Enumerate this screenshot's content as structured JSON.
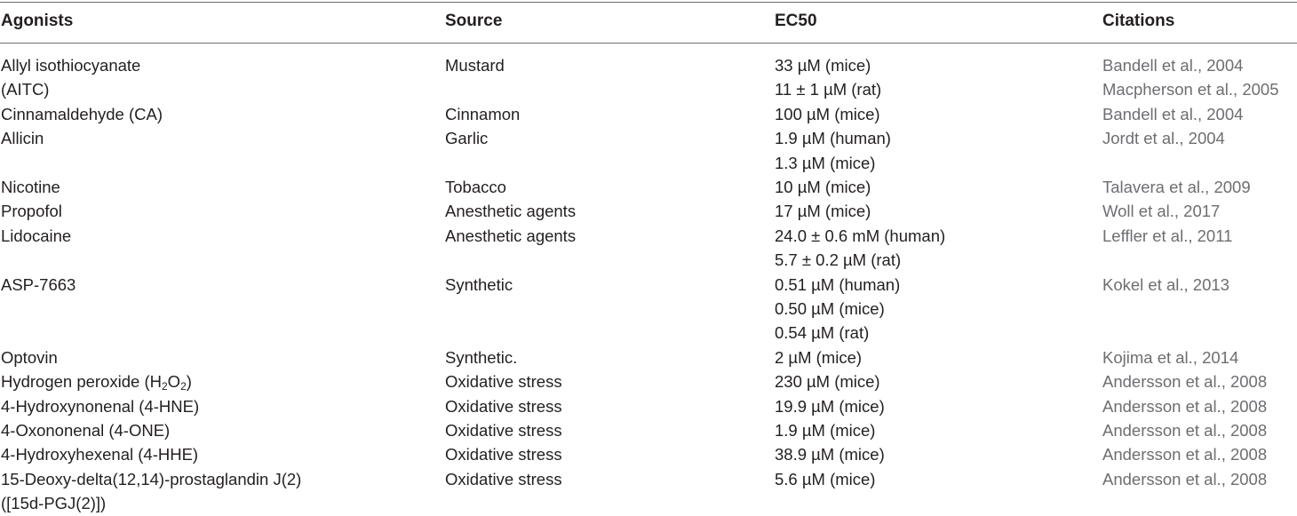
{
  "table": {
    "headers": {
      "agonists": "Agonists",
      "source": "Source",
      "ec50": "EC50",
      "citations": "Citations"
    },
    "rows": [
      {
        "agonist": [
          "Allyl isothiocyanate",
          "(AITC)"
        ],
        "source": [
          "Mustard"
        ],
        "ec50": [
          "33 µM (mice)",
          "11 ± 1 µM (rat)"
        ],
        "citation": [
          "Bandell et al., 2004",
          "Macpherson et al., 2005"
        ]
      },
      {
        "agonist": [
          "Cinnamaldehyde (CA)"
        ],
        "source": [
          "Cinnamon"
        ],
        "ec50": [
          "100 µM (mice)"
        ],
        "citation": [
          "Bandell et al., 2004"
        ]
      },
      {
        "agonist": [
          "Allicin"
        ],
        "source": [
          "Garlic"
        ],
        "ec50": [
          "1.9 µM (human)",
          "1.3 µM (mice)"
        ],
        "citation": [
          "Jordt et al., 2004"
        ]
      },
      {
        "agonist": [
          "Nicotine"
        ],
        "source": [
          "Tobacco"
        ],
        "ec50": [
          "10 µM (mice)"
        ],
        "citation": [
          "Talavera et al., 2009"
        ]
      },
      {
        "agonist": [
          "Propofol"
        ],
        "source": [
          "Anesthetic agents"
        ],
        "ec50": [
          "17 µM (mice)"
        ],
        "citation": [
          "Woll et al., 2017"
        ]
      },
      {
        "agonist": [
          "Lidocaine"
        ],
        "source": [
          "Anesthetic agents"
        ],
        "ec50": [
          "24.0 ± 0.6 mM (human)",
          "5.7 ± 0.2 µM (rat)"
        ],
        "citation": [
          "Leffler et al., 2011"
        ]
      },
      {
        "agonist": [
          "ASP-7663"
        ],
        "source": [
          "Synthetic"
        ],
        "ec50": [
          "0.51 µM (human)",
          "0.50 µM (mice)",
          "0.54 µM (rat)"
        ],
        "citation": [
          "Kokel et al., 2013"
        ]
      },
      {
        "agonist": [
          "Optovin"
        ],
        "source": [
          "Synthetic."
        ],
        "ec50": [
          "2 µM (mice)"
        ],
        "citation": [
          "Kojima et al., 2014"
        ]
      },
      {
        "agonist": [
          "Hydrogen peroxide (H2O2)"
        ],
        "source": [
          "Oxidative stress"
        ],
        "ec50": [
          "230 µM (mice)"
        ],
        "citation": [
          "Andersson et al., 2008"
        ]
      },
      {
        "agonist": [
          "4-Hydroxynonenal (4-HNE)"
        ],
        "source": [
          "Oxidative stress"
        ],
        "ec50": [
          "19.9 µM (mice)"
        ],
        "citation": [
          "Andersson et al., 2008"
        ]
      },
      {
        "agonist": [
          "4-Oxononenal (4-ONE)"
        ],
        "source": [
          "Oxidative stress"
        ],
        "ec50": [
          "1.9 µM (mice)"
        ],
        "citation": [
          "Andersson et al., 2008"
        ]
      },
      {
        "agonist": [
          "4-Hydroxyhexenal (4-HHE)"
        ],
        "source": [
          "Oxidative stress"
        ],
        "ec50": [
          "38.9 µM (mice)"
        ],
        "citation": [
          "Andersson et al., 2008"
        ]
      },
      {
        "agonist": [
          "15-Deoxy-delta(12,14)-prostaglandin J(2)",
          "([15d-PGJ(2)])"
        ],
        "source": [
          "Oxidative stress"
        ],
        "ec50": [
          "5.6 µM (mice)"
        ],
        "citation": [
          "Andersson et al., 2008"
        ]
      }
    ]
  }
}
